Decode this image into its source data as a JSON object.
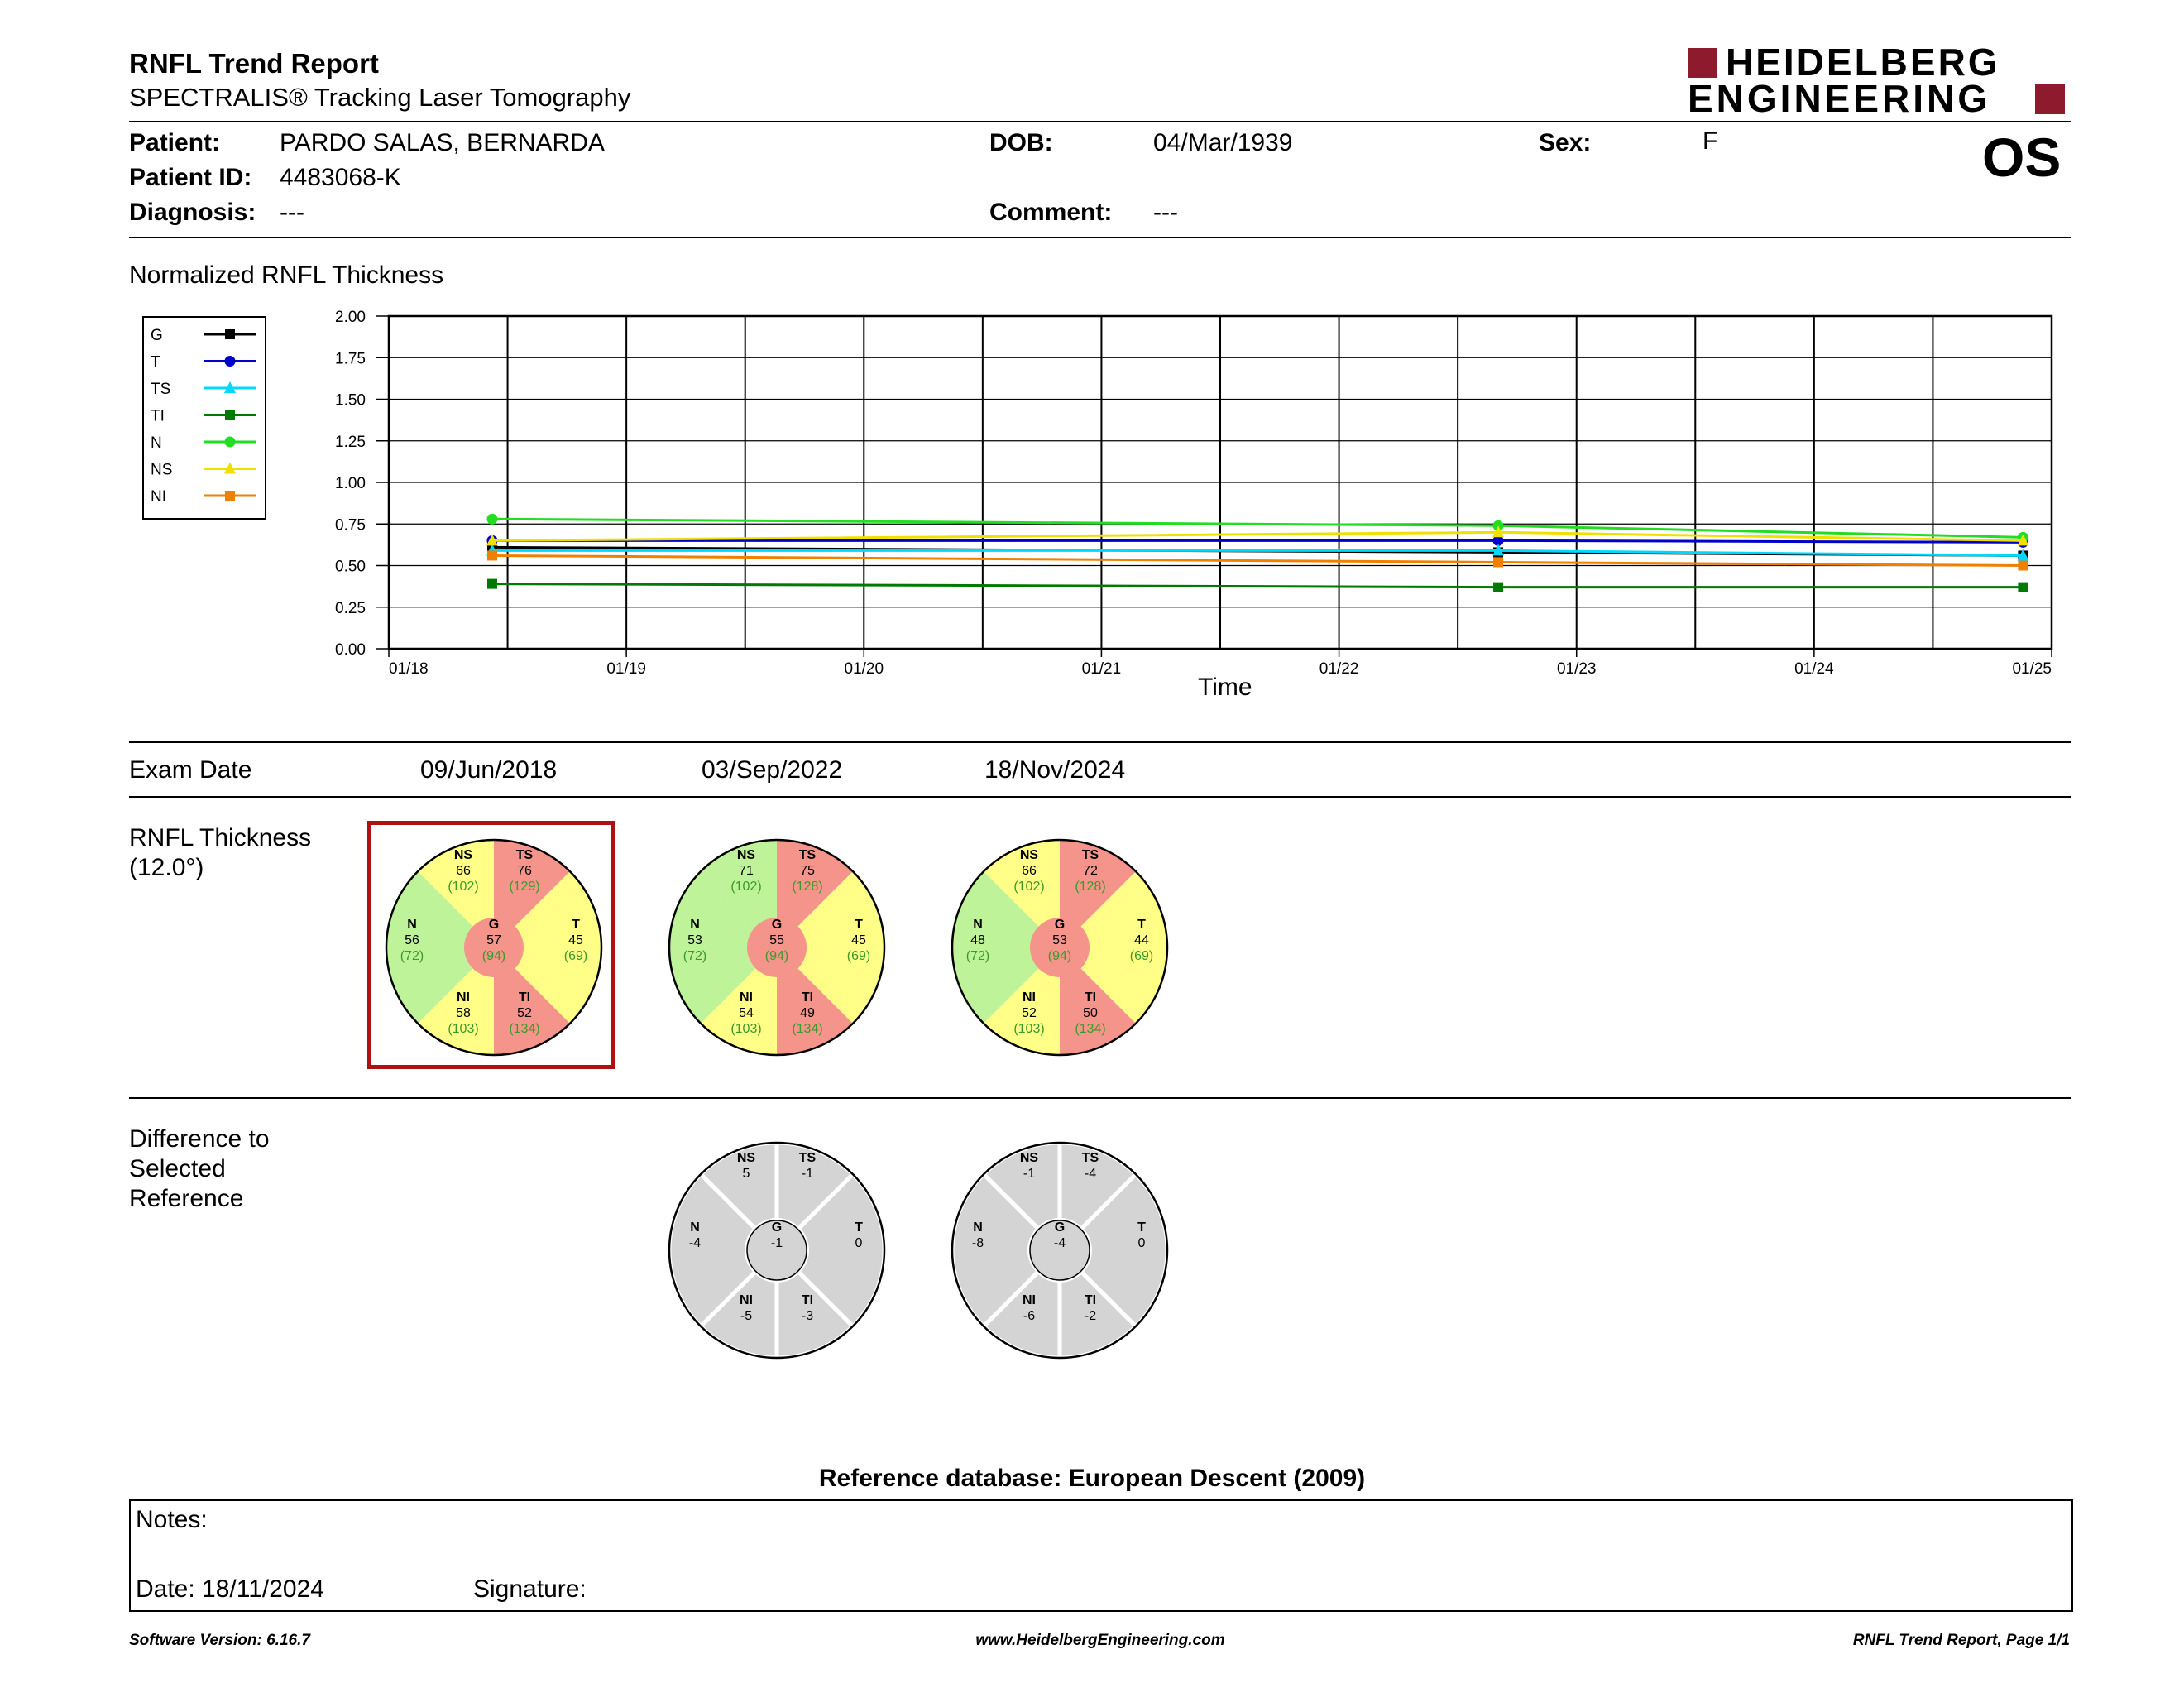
{
  "header": {
    "title": "RNFL Trend Report",
    "subtitle": "SPECTRALIS® Tracking Laser Tomography",
    "logo_line1": "HEIDELBERG",
    "logo_line2": "ENGINEERING",
    "eye": "OS"
  },
  "patient": {
    "patient_label": "Patient:",
    "patient_value": "PARDO SALAS, BERNARDA",
    "id_label": "Patient ID:",
    "id_value": "4483068-K",
    "diagnosis_label": "Diagnosis:",
    "diagnosis_value": "---",
    "dob_label": "DOB:",
    "dob_value": "04/Mar/1939",
    "comment_label": "Comment:",
    "comment_value": "---",
    "sex_label": "Sex:",
    "sex_value": "F"
  },
  "chart_section": {
    "heading": "Normalized RNFL Thickness"
  },
  "chart_data": {
    "type": "line",
    "title": "",
    "xlabel": "Time",
    "ylabel": "",
    "ylim": [
      0,
      2.0
    ],
    "y_ticks": [
      "0.00",
      "0.25",
      "0.50",
      "0.75",
      "1.00",
      "1.25",
      "1.50",
      "1.75",
      "2.00"
    ],
    "x_ticks": [
      "01/18",
      "01/19",
      "01/20",
      "01/21",
      "01/22",
      "01/23",
      "01/24",
      "01/25"
    ],
    "x": [
      "2018-06-09",
      "2022-09-03",
      "2024-11-18"
    ],
    "grid": true,
    "legend_position": "left",
    "series": [
      {
        "name": "G",
        "color": "#000000",
        "marker": "square",
        "values": [
          0.61,
          0.58,
          0.56
        ]
      },
      {
        "name": "T",
        "color": "#0000cc",
        "marker": "circle",
        "values": [
          0.65,
          0.65,
          0.64
        ]
      },
      {
        "name": "TS",
        "color": "#00d8ff",
        "marker": "triangle",
        "values": [
          0.59,
          0.59,
          0.56
        ]
      },
      {
        "name": "TI",
        "color": "#007a00",
        "marker": "square",
        "values": [
          0.39,
          0.37,
          0.37
        ]
      },
      {
        "name": "N",
        "color": "#22dd22",
        "marker": "circle",
        "values": [
          0.78,
          0.74,
          0.67
        ]
      },
      {
        "name": "NS",
        "color": "#f0e000",
        "marker": "triangle",
        "values": [
          0.65,
          0.7,
          0.65
        ]
      },
      {
        "name": "NI",
        "color": "#f08000",
        "marker": "square",
        "values": [
          0.56,
          0.52,
          0.5
        ]
      }
    ]
  },
  "exams": {
    "label": "Exam Date",
    "dates": [
      "09/Jun/2018",
      "03/Sep/2022",
      "18/Nov/2024"
    ]
  },
  "rnfl_section": {
    "label_line1": "RNFL Thickness",
    "label_line2": "(12.0°)"
  },
  "diff_section": {
    "label_line1": "Difference to",
    "label_line2": "Selected",
    "label_line3": "Reference"
  },
  "colors": {
    "green": "#bff39a",
    "yellow": "#ffff88",
    "red": "#f5948a",
    "grey": "#d4d4d4",
    "selected_frame": "#b01010",
    "logo_red": "#8e1a2e"
  },
  "rnfl_charts": [
    {
      "selected": true,
      "sectors": {
        "NS": {
          "value": "66",
          "normal": "(102)",
          "status": "yellow"
        },
        "TS": {
          "value": "76",
          "normal": "(129)",
          "status": "red"
        },
        "N": {
          "value": "56",
          "normal": "(72)",
          "status": "green"
        },
        "G": {
          "value": "57",
          "normal": "(94)",
          "status": "red"
        },
        "T": {
          "value": "45",
          "normal": "(69)",
          "status": "yellow"
        },
        "NI": {
          "value": "58",
          "normal": "(103)",
          "status": "yellow"
        },
        "TI": {
          "value": "52",
          "normal": "(134)",
          "status": "red"
        }
      }
    },
    {
      "selected": false,
      "sectors": {
        "NS": {
          "value": "71",
          "normal": "(102)",
          "status": "green"
        },
        "TS": {
          "value": "75",
          "normal": "(128)",
          "status": "red"
        },
        "N": {
          "value": "53",
          "normal": "(72)",
          "status": "green"
        },
        "G": {
          "value": "55",
          "normal": "(94)",
          "status": "red"
        },
        "T": {
          "value": "45",
          "normal": "(69)",
          "status": "yellow"
        },
        "NI": {
          "value": "54",
          "normal": "(103)",
          "status": "yellow"
        },
        "TI": {
          "value": "49",
          "normal": "(134)",
          "status": "red"
        }
      }
    },
    {
      "selected": false,
      "sectors": {
        "NS": {
          "value": "66",
          "normal": "(102)",
          "status": "yellow"
        },
        "TS": {
          "value": "72",
          "normal": "(128)",
          "status": "red"
        },
        "N": {
          "value": "48",
          "normal": "(72)",
          "status": "green"
        },
        "G": {
          "value": "53",
          "normal": "(94)",
          "status": "red"
        },
        "T": {
          "value": "44",
          "normal": "(69)",
          "status": "yellow"
        },
        "NI": {
          "value": "52",
          "normal": "(103)",
          "status": "yellow"
        },
        "TI": {
          "value": "50",
          "normal": "(134)",
          "status": "red"
        }
      }
    }
  ],
  "diff_charts": [
    {
      "sectors": {
        "NS": {
          "value": "5"
        },
        "TS": {
          "value": "-1"
        },
        "N": {
          "value": "-4"
        },
        "G": {
          "value": "-1"
        },
        "T": {
          "value": "0"
        },
        "NI": {
          "value": "-5"
        },
        "TI": {
          "value": "-3"
        }
      }
    },
    {
      "sectors": {
        "NS": {
          "value": "-1"
        },
        "TS": {
          "value": "-4"
        },
        "N": {
          "value": "-8"
        },
        "G": {
          "value": "-4"
        },
        "T": {
          "value": "0"
        },
        "NI": {
          "value": "-6"
        },
        "TI": {
          "value": "-2"
        }
      }
    }
  ],
  "reference_db": "Reference database: European Descent (2009)",
  "notes": {
    "notes_label": "Notes:",
    "date_label": "Date: 18/11/2024",
    "signature_label": "Signature:"
  },
  "footer": {
    "software": "Software Version: 6.16.7",
    "website": "www.HeidelbergEngineering.com",
    "page": "RNFL Trend Report, Page 1/1"
  }
}
